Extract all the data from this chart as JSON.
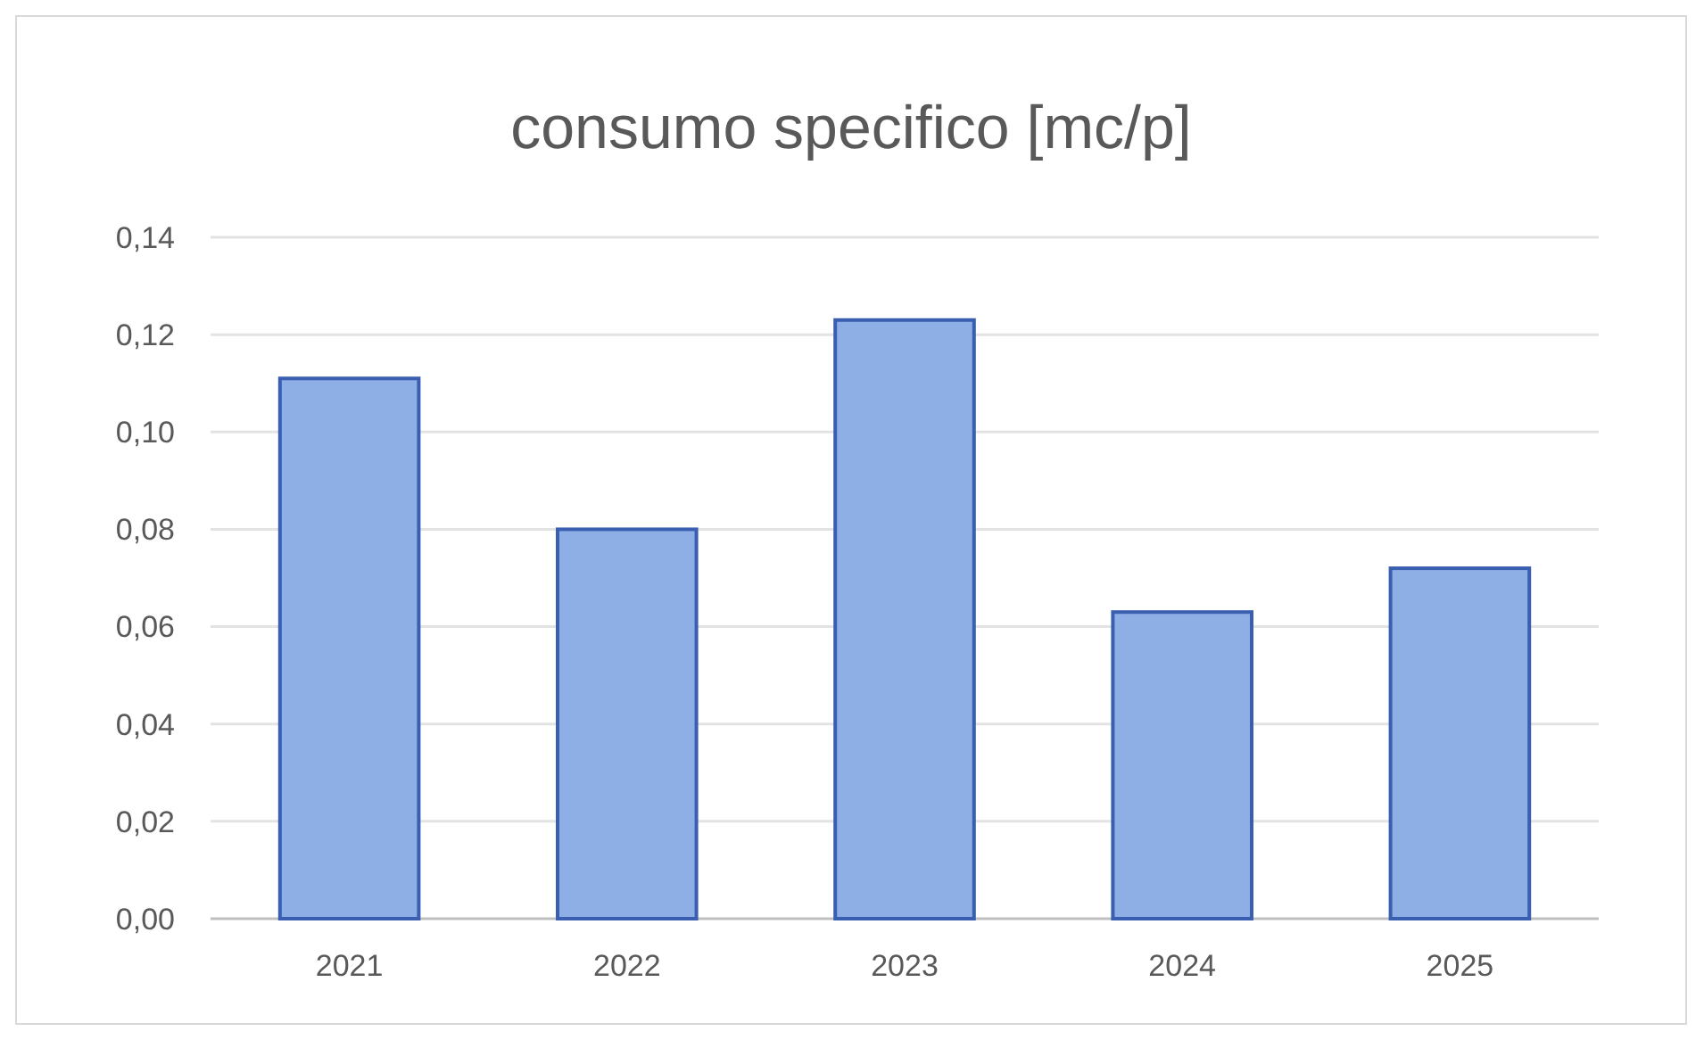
{
  "chart_data": {
    "type": "bar",
    "title": "consumo  specifico  [mc/p]",
    "categories": [
      "2021",
      "2022",
      "2023",
      "2024",
      "2025"
    ],
    "values": [
      0.111,
      0.08,
      0.123,
      0.063,
      0.072
    ],
    "color": "#8eaee6",
    "ylim": [
      0,
      0.14
    ],
    "yticks": [
      {
        "value": 0,
        "label": "0,00"
      },
      {
        "value": 0.02,
        "label": "0,02"
      },
      {
        "value": 0.04,
        "label": "0,04"
      },
      {
        "value": 0.06,
        "label": "0,06"
      },
      {
        "value": 0.08,
        "label": "0,08"
      },
      {
        "value": 0.1,
        "label": "0,10"
      },
      {
        "value": 0.12,
        "label": "0,12"
      },
      {
        "value": 0.14,
        "label": "0,14"
      }
    ],
    "grid": true
  }
}
